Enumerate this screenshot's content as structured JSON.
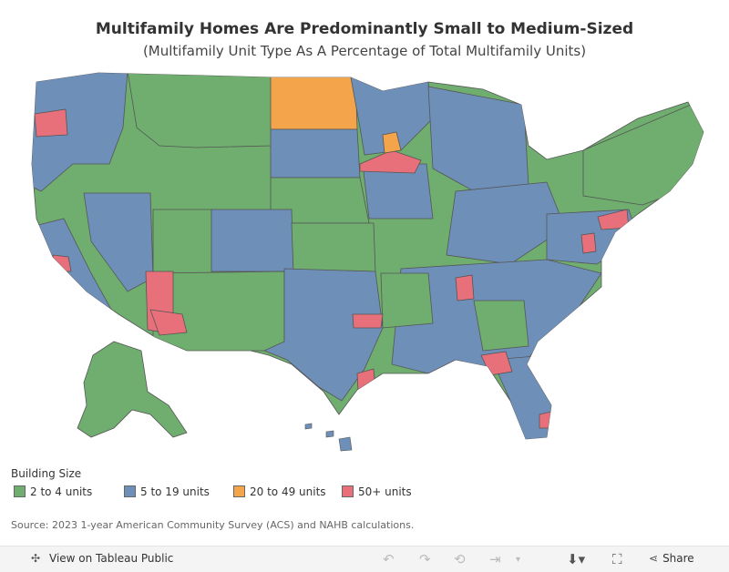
{
  "title": "Multifamily Homes Are Predominantly Small to Medium-Sized",
  "subtitle": "(Multifamily Unit Type As A Percentage of Total Multifamily Units)",
  "legend": {
    "title": "Building Size",
    "items": [
      {
        "label": "2 to 4 units",
        "color": "#6fae6e"
      },
      {
        "label": "5 to 19 units",
        "color": "#6e8fb8"
      },
      {
        "label": "20 to 49 units",
        "color": "#f4a54b"
      },
      {
        "label": "50+ units",
        "color": "#e8707a"
      }
    ]
  },
  "source": "Source: 2023 1-year American Community Survey (ACS) and NAHB calculations.",
  "toolbar": {
    "view_label": "View on Tableau Public",
    "share_label": "Share",
    "icons": [
      "tableau-logo-icon",
      "undo-icon",
      "redo-icon",
      "revert-icon",
      "forward-icon",
      "dropdown-icon",
      "download-icon",
      "fullscreen-icon",
      "share-icon"
    ]
  }
}
